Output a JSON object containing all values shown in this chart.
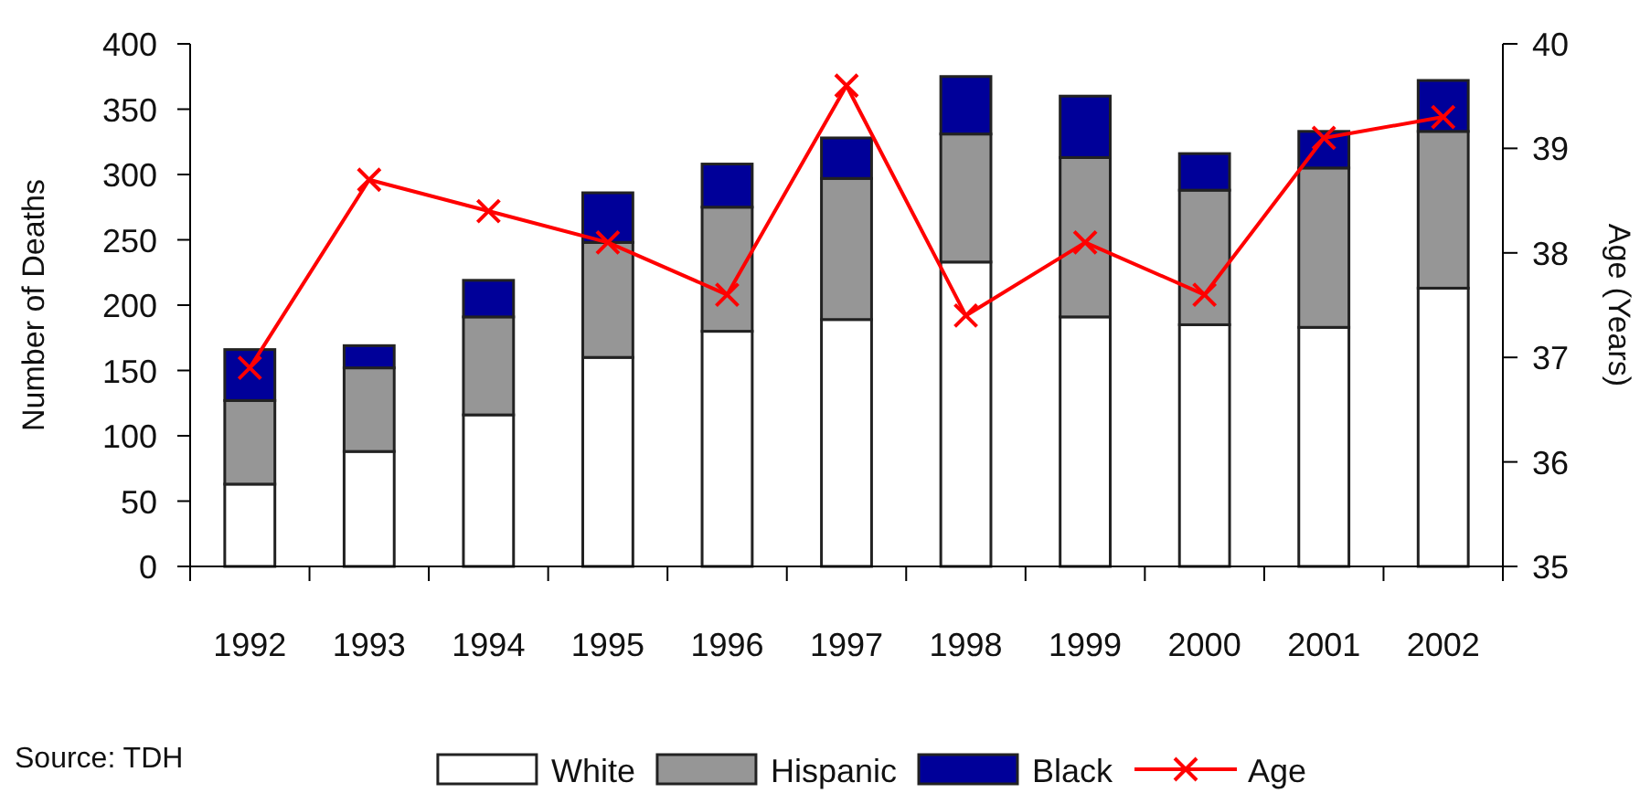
{
  "chart_data": {
    "type": "bar",
    "stacked": true,
    "categories": [
      "1992",
      "1993",
      "1994",
      "1995",
      "1996",
      "1997",
      "1998",
      "1999",
      "2000",
      "2001",
      "2002"
    ],
    "series": [
      {
        "name": "White",
        "color": "#ffffff",
        "values": [
          63,
          88,
          116,
          160,
          180,
          189,
          233,
          191,
          185,
          183,
          213
        ]
      },
      {
        "name": "Hispanic",
        "color": "#969696",
        "values": [
          64,
          64,
          75,
          88,
          95,
          108,
          98,
          122,
          103,
          122,
          120
        ]
      },
      {
        "name": "Black",
        "color": "#000099",
        "values": [
          39,
          17,
          28,
          38,
          33,
          31,
          44,
          47,
          28,
          28,
          39
        ]
      },
      {
        "name": "Age",
        "type": "line",
        "axis": "y2",
        "color": "#ff0000",
        "values": [
          36.9,
          38.7,
          38.4,
          38.1,
          37.6,
          39.6,
          37.4,
          38.1,
          37.6,
          39.1,
          39.3
        ]
      }
    ],
    "marker": "cross",
    "ylabel": "Number of Deaths",
    "y2label": "Age (Years)",
    "ylim": [
      0,
      400
    ],
    "yticks": [
      0,
      50,
      100,
      150,
      200,
      250,
      300,
      350,
      400
    ],
    "y2lim": [
      35,
      40
    ],
    "y2ticks": [
      35,
      36,
      37,
      38,
      39,
      40
    ],
    "legend": "bottom",
    "annotations": [
      "Source: TDH"
    ]
  }
}
